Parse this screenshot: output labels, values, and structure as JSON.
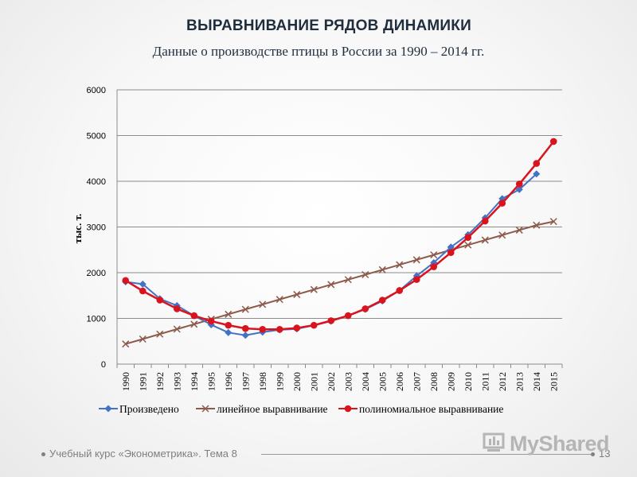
{
  "slide": {
    "title": "ВЫРАВНИВАНИЕ РЯДОВ ДИНАМИКИ",
    "subtitle": "Данные о производстве птицы в России за 1990 – 2014 гг.",
    "footer_text": "Учебный курс «Эконометрика». Тема 8",
    "page_number": "13",
    "logo_text": "MyShared"
  },
  "chart_data": {
    "type": "line",
    "title": "",
    "xlabel": "",
    "ylabel": "тыс. т.",
    "ylim": [
      0,
      6000
    ],
    "yticks": [
      0,
      1000,
      2000,
      3000,
      4000,
      5000,
      6000
    ],
    "grid": true,
    "legend_position": "bottom",
    "categories": [
      "1990",
      "1991",
      "1992",
      "1993",
      "1994",
      "1995",
      "1996",
      "1997",
      "1998",
      "1999",
      "2000",
      "2001",
      "2002",
      "2003",
      "2004",
      "2005",
      "2006",
      "2007",
      "2008",
      "2009",
      "2010",
      "2011",
      "2012",
      "2013",
      "2014",
      "2015"
    ],
    "series": [
      {
        "name": "Произведено",
        "color": "#4472c4",
        "marker": "diamond",
        "values": [
          1800,
          1750,
          1430,
          1280,
          1060,
          860,
          690,
          630,
          700,
          750,
          770,
          850,
          940,
          1060,
          1200,
          1380,
          1610,
          1930,
          2220,
          2560,
          2830,
          3200,
          3620,
          3820,
          4160,
          null
        ]
      },
      {
        "name": "линейное выравнивание",
        "color": "#8b5a4a",
        "marker": "x",
        "values": [
          440,
          548,
          657,
          765,
          873,
          982,
          1090,
          1198,
          1306,
          1415,
          1523,
          1631,
          1740,
          1848,
          1956,
          2064,
          2173,
          2281,
          2389,
          2498,
          2606,
          2714,
          2822,
          2931,
          3039,
          3120
        ]
      },
      {
        "name": "полиномиальное выравнивание",
        "color": "#d9141e",
        "marker": "circle",
        "values": [
          1830,
          1600,
          1400,
          1210,
          1060,
          940,
          850,
          780,
          760,
          760,
          790,
          850,
          950,
          1060,
          1210,
          1400,
          1610,
          1850,
          2130,
          2440,
          2770,
          3130,
          3520,
          3940,
          4390,
          4870
        ]
      }
    ]
  }
}
